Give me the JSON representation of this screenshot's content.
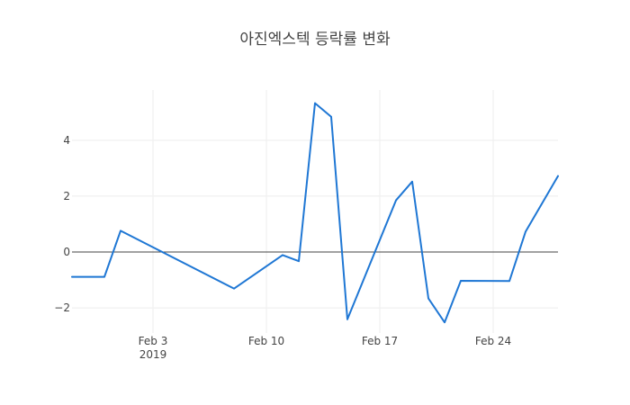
{
  "chart_data": {
    "type": "line",
    "title": "아진엑스텍 등락률 변화",
    "xlabel": "",
    "ylabel": "",
    "x_type": "date",
    "xlim": [
      "2019-01-29",
      "2019-02-28"
    ],
    "ylim": [
      -2.9,
      5.8
    ],
    "grid": true,
    "legend": "none",
    "x_ticks": [
      {
        "date": "2019-02-03",
        "label": "Feb 3",
        "sublabel": "2019"
      },
      {
        "date": "2019-02-10",
        "label": "Feb 10",
        "sublabel": ""
      },
      {
        "date": "2019-02-17",
        "label": "Feb 17",
        "sublabel": ""
      },
      {
        "date": "2019-02-24",
        "label": "Feb 24",
        "sublabel": ""
      }
    ],
    "y_ticks": [
      {
        "value": -2,
        "label": "−2"
      },
      {
        "value": 0,
        "label": "0"
      },
      {
        "value": 2,
        "label": "2"
      },
      {
        "value": 4,
        "label": "4"
      }
    ],
    "series": [
      {
        "color": "#1f77d4",
        "points": [
          {
            "x": "2019-01-29",
            "y": -0.89
          },
          {
            "x": "2019-01-31",
            "y": -0.89
          },
          {
            "x": "2019-02-01",
            "y": 0.76
          },
          {
            "x": "2019-02-08",
            "y": -1.31
          },
          {
            "x": "2019-02-11",
            "y": -0.11
          },
          {
            "x": "2019-02-12",
            "y": -0.33
          },
          {
            "x": "2019-02-13",
            "y": 5.33
          },
          {
            "x": "2019-02-14",
            "y": 4.84
          },
          {
            "x": "2019-02-15",
            "y": -2.41
          },
          {
            "x": "2019-02-18",
            "y": 1.85
          },
          {
            "x": "2019-02-19",
            "y": 2.52
          },
          {
            "x": "2019-02-20",
            "y": -1.66
          },
          {
            "x": "2019-02-21",
            "y": -2.52
          },
          {
            "x": "2019-02-22",
            "y": -1.03
          },
          {
            "x": "2019-02-25",
            "y": -1.04
          },
          {
            "x": "2019-02-26",
            "y": 0.73
          },
          {
            "x": "2019-02-28",
            "y": 2.72
          }
        ]
      }
    ]
  }
}
